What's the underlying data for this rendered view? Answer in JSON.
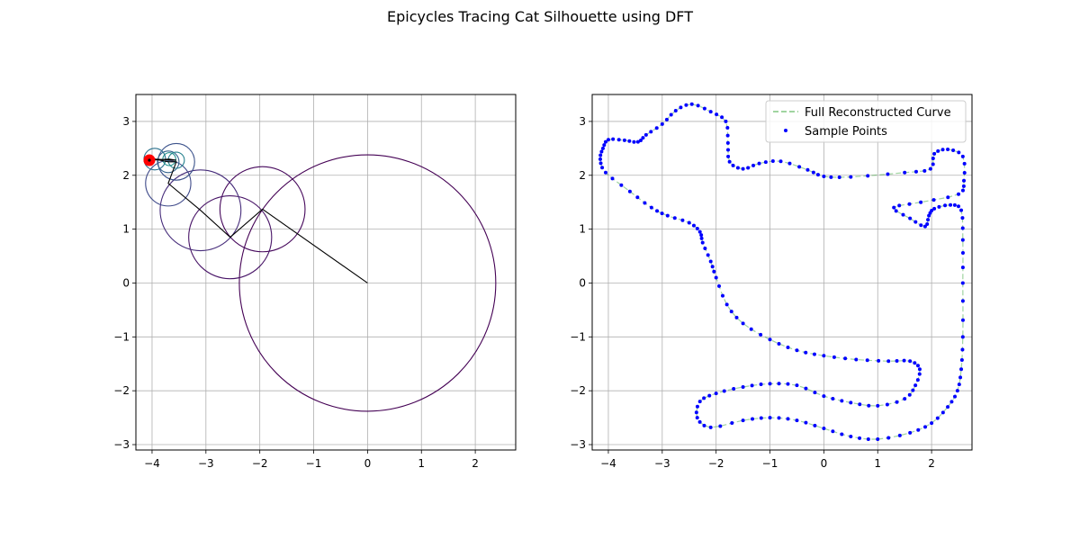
{
  "figure": {
    "title": "Epicycles Tracing Cat Silhouette using DFT"
  },
  "chart_data": [
    {
      "type": "line",
      "panel": "left",
      "xlim": [
        -4.3,
        2.75
      ],
      "ylim": [
        -3.1,
        3.5
      ],
      "xticks": [
        -4,
        -3,
        -2,
        -1,
        0,
        1,
        2
      ],
      "yticks": [
        -3,
        -2,
        -1,
        0,
        1,
        2,
        3
      ],
      "grid": true,
      "epicycle_chain": [
        [
          0.0,
          0.0
        ],
        [
          -1.95,
          1.37
        ],
        [
          -2.55,
          0.85
        ],
        [
          -3.1,
          1.35
        ],
        [
          -3.7,
          1.85
        ],
        [
          -3.55,
          2.25
        ],
        [
          -3.7,
          2.25
        ],
        [
          -3.95,
          2.3
        ],
        [
          -3.55,
          2.28
        ],
        [
          -3.68,
          2.3
        ],
        [
          -4.05,
          2.28
        ]
      ],
      "circle_radii": [
        2.38,
        0.79,
        0.77,
        0.75,
        0.42,
        0.34,
        0.2,
        0.2,
        0.15,
        0.12
      ],
      "tip_point": [
        -4.05,
        2.28
      ],
      "tip_color": "#ff0000"
    },
    {
      "type": "scatter",
      "panel": "right",
      "xlim": [
        -4.3,
        2.75
      ],
      "ylim": [
        -3.1,
        3.5
      ],
      "xticks": [
        -4,
        -3,
        -2,
        -1,
        0,
        1,
        2
      ],
      "yticks": [
        -3,
        -2,
        -1,
        0,
        1,
        2,
        3
      ],
      "grid": true,
      "legend_position": "upper right",
      "series": [
        {
          "name": "Full Reconstructed Curve",
          "style": "dashed line",
          "color": "#2ca02c"
        },
        {
          "name": "Sample Points",
          "style": "points",
          "color": "#0000ff"
        }
      ],
      "sample_points": [
        [
          1.0,
          -2.9
        ],
        [
          1.6,
          -2.78
        ],
        [
          2.0,
          -2.6
        ],
        [
          2.3,
          -2.3
        ],
        [
          2.48,
          -2.0
        ],
        [
          2.55,
          -1.6
        ],
        [
          2.58,
          -1.0
        ],
        [
          2.58,
          0.0
        ],
        [
          2.58,
          0.8
        ],
        [
          2.55,
          1.35
        ],
        [
          2.35,
          1.45
        ],
        [
          2.05,
          1.38
        ],
        [
          1.95,
          1.25
        ],
        [
          1.88,
          1.05
        ],
        [
          1.6,
          1.2
        ],
        [
          1.3,
          1.4
        ],
        [
          1.8,
          1.5
        ],
        [
          2.5,
          1.65
        ],
        [
          2.6,
          1.9
        ],
        [
          2.58,
          2.35
        ],
        [
          2.3,
          2.48
        ],
        [
          2.05,
          2.4
        ],
        [
          1.98,
          2.12
        ],
        [
          1.5,
          2.05
        ],
        [
          0.5,
          1.97
        ],
        [
          0.0,
          1.98
        ],
        [
          -0.3,
          2.1
        ],
        [
          -0.8,
          2.26
        ],
        [
          -1.2,
          2.22
        ],
        [
          -1.5,
          2.12
        ],
        [
          -1.75,
          2.25
        ],
        [
          -1.78,
          2.6
        ],
        [
          -1.82,
          3.0
        ],
        [
          -2.1,
          3.18
        ],
        [
          -2.45,
          3.32
        ],
        [
          -2.75,
          3.2
        ],
        [
          -3.0,
          2.95
        ],
        [
          -3.3,
          2.75
        ],
        [
          -3.45,
          2.62
        ],
        [
          -3.7,
          2.65
        ],
        [
          -4.0,
          2.66
        ],
        [
          -4.1,
          2.5
        ],
        [
          -4.15,
          2.3
        ],
        [
          -4.05,
          2.05
        ],
        [
          -3.6,
          1.7
        ],
        [
          -3.2,
          1.4
        ],
        [
          -2.9,
          1.25
        ],
        [
          -2.5,
          1.12
        ],
        [
          -2.3,
          0.95
        ],
        [
          -2.25,
          0.75
        ],
        [
          -2.1,
          0.4
        ],
        [
          -2.0,
          0.1
        ],
        [
          -1.8,
          -0.4
        ],
        [
          -1.5,
          -0.75
        ],
        [
          -1.0,
          -1.05
        ],
        [
          -0.5,
          -1.25
        ],
        [
          0.0,
          -1.35
        ],
        [
          0.6,
          -1.42
        ],
        [
          1.2,
          -1.45
        ],
        [
          1.6,
          -1.45
        ],
        [
          1.78,
          -1.6
        ],
        [
          1.7,
          -1.9
        ],
        [
          1.5,
          -2.15
        ],
        [
          1.0,
          -2.28
        ],
        [
          0.5,
          -2.22
        ],
        [
          0.0,
          -2.1
        ],
        [
          -0.5,
          -1.9
        ],
        [
          -1.0,
          -1.87
        ],
        [
          -1.5,
          -1.93
        ],
        [
          -2.0,
          -2.05
        ],
        [
          -2.3,
          -2.2
        ],
        [
          -2.35,
          -2.5
        ],
        [
          -2.1,
          -2.68
        ],
        [
          -1.5,
          -2.55
        ],
        [
          -1.0,
          -2.5
        ],
        [
          -0.5,
          -2.55
        ],
        [
          0.0,
          -2.7
        ],
        [
          0.5,
          -2.85
        ],
        [
          1.0,
          -2.9
        ]
      ]
    }
  ],
  "legend": {
    "curve_label": "Full Reconstructed Curve",
    "points_label": "Sample Points"
  }
}
